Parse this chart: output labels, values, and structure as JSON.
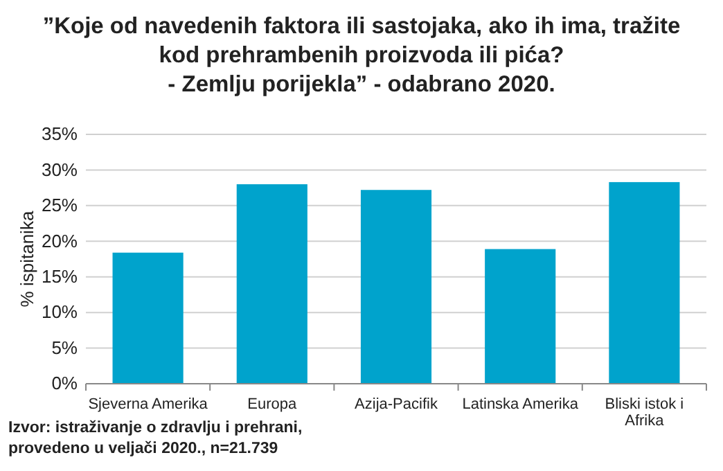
{
  "chart_data": {
    "type": "bar",
    "title": "”Koje od navedenih faktora ili sastojaka, ako ih ima, tražite\nkod prehrambenih proizvoda ili pića?\n- Zemlju porijekla” - odabrano 2020.",
    "ylabel": "% ispitanika",
    "categories": [
      "Sjeverna Amerika",
      "Europa",
      "Azija-Pacifik",
      "Latinska Amerika",
      "Bliski istok i Afrika"
    ],
    "values": [
      0.184,
      0.28,
      0.272,
      0.189,
      0.283
    ],
    "color": "#00a3cc",
    "ylim": [
      0,
      0.35
    ],
    "yticks": [
      {
        "value": 0,
        "label": "0%"
      },
      {
        "value": 0.05,
        "label": "5%"
      },
      {
        "value": 0.1,
        "label": "10%"
      },
      {
        "value": 0.15,
        "label": "15%"
      },
      {
        "value": 0.2,
        "label": "20%"
      },
      {
        "value": 0.25,
        "label": "25%"
      },
      {
        "value": 0.3,
        "label": "30%"
      },
      {
        "value": 0.35,
        "label": "35%"
      }
    ],
    "grid": "y",
    "annotations": [
      "Izvor: istraživanje o zdravlju i prehrani,\nprovedeno u veljači 2020., n=21.739"
    ]
  }
}
